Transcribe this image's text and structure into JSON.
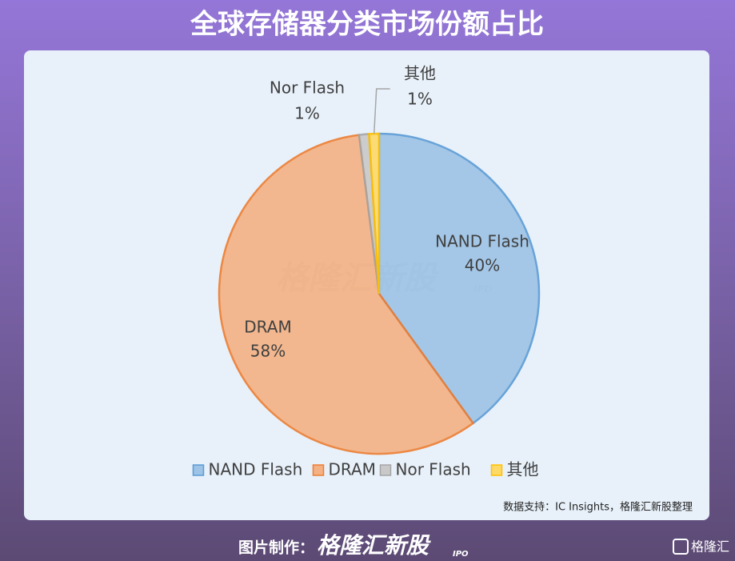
{
  "header": {
    "title": "全球存储器分类市场份额占比"
  },
  "chart_data": {
    "type": "pie",
    "categories": [
      "NAND Flash",
      "DRAM",
      "Nor Flash",
      "其他"
    ],
    "values": [
      40,
      58,
      1,
      1
    ],
    "value_labels": [
      "40%",
      "58%",
      "1%",
      "1%"
    ],
    "colors": [
      "#9dc3e6",
      "#f4b183",
      "#c9c9c9",
      "#ffd966"
    ],
    "legend": "bottom"
  },
  "watermark": {
    "text": "格隆汇新股",
    "tag": "IPO"
  },
  "source": "数据支持：IC Insights，格隆汇新股整理",
  "footer": {
    "label": "图片制作：",
    "brand": "格隆汇新股",
    "brand_tag": "IPO",
    "corner_logo": "格隆汇"
  }
}
